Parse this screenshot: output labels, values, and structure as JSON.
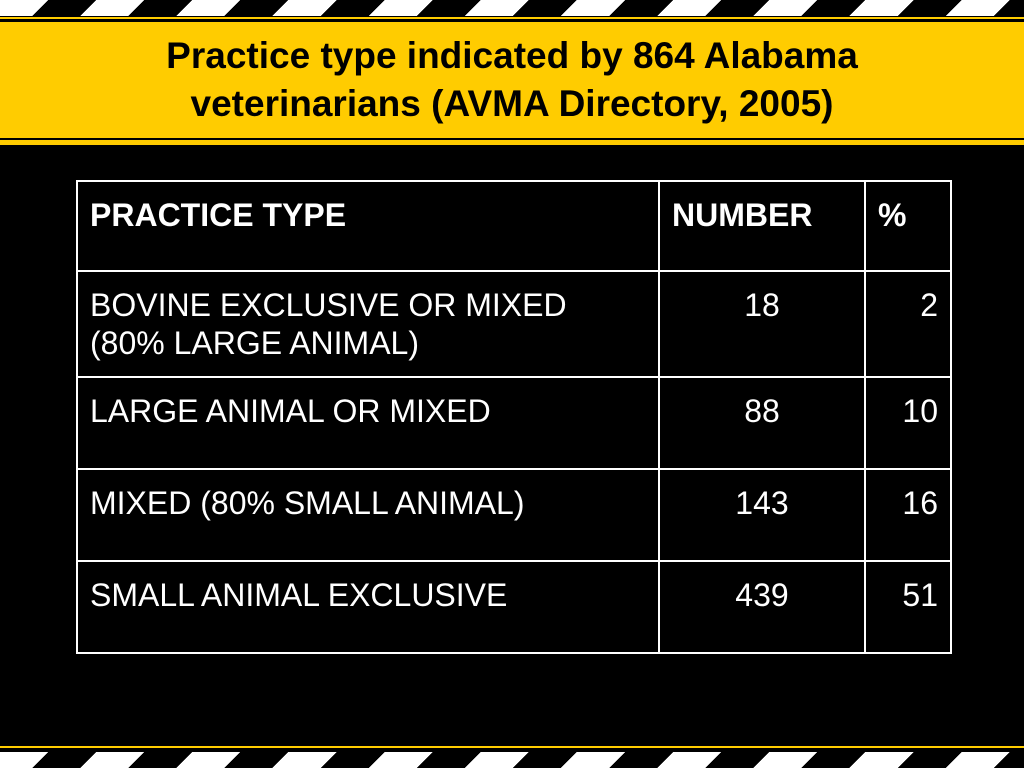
{
  "title": "Practice type indicated by 864 Alabama veterinarians (AVMA Directory, 2005)",
  "table": {
    "headers": [
      "PRACTICE TYPE",
      "NUMBER",
      "%"
    ],
    "rows": [
      {
        "type": "BOVINE EXCLUSIVE OR MIXED (80% LARGE ANIMAL)",
        "number": "18",
        "percent": "2"
      },
      {
        "type": "LARGE ANIMAL OR MIXED",
        "number": "88",
        "percent": "10"
      },
      {
        "type": "MIXED (80% SMALL ANIMAL)",
        "number": "143",
        "percent": "16"
      },
      {
        "type": "SMALL ANIMAL EXCLUSIVE",
        "number": "439",
        "percent": "51"
      }
    ]
  },
  "colors": {
    "background": "#000000",
    "accent": "#ffcc00",
    "text": "#ffffff"
  }
}
